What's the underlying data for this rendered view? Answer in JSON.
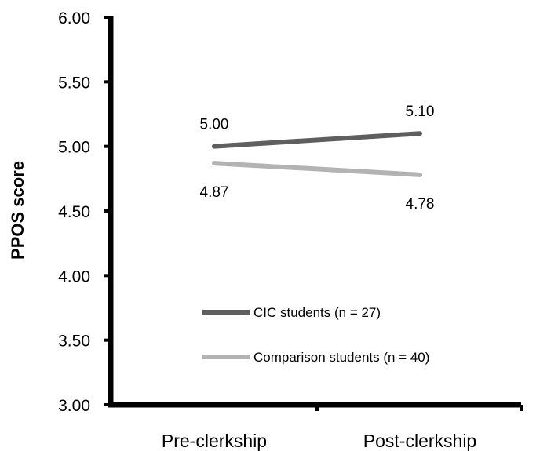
{
  "chart_data": {
    "type": "line",
    "title": "",
    "xlabel": "",
    "ylabel": "PPOS score",
    "categories": [
      "Pre-clerkship",
      "Post-clerkship"
    ],
    "ylim": [
      3.0,
      6.0
    ],
    "yticks": [
      "3.00",
      "3.50",
      "4.00",
      "4.50",
      "5.00",
      "5.50",
      "6.00"
    ],
    "grid": false,
    "legend_position": "bottom-center",
    "series": [
      {
        "name": "CIC students (n = 27)",
        "values": [
          5.0,
          5.1
        ],
        "labels": [
          "5.00",
          "5.10"
        ],
        "color": "#5f5f5f",
        "label_position": "above"
      },
      {
        "name": "Comparison students (n = 40)",
        "values": [
          4.87,
          4.78
        ],
        "labels": [
          "4.87",
          "4.78"
        ],
        "color": "#b3b3b3",
        "label_position": "below"
      }
    ]
  }
}
